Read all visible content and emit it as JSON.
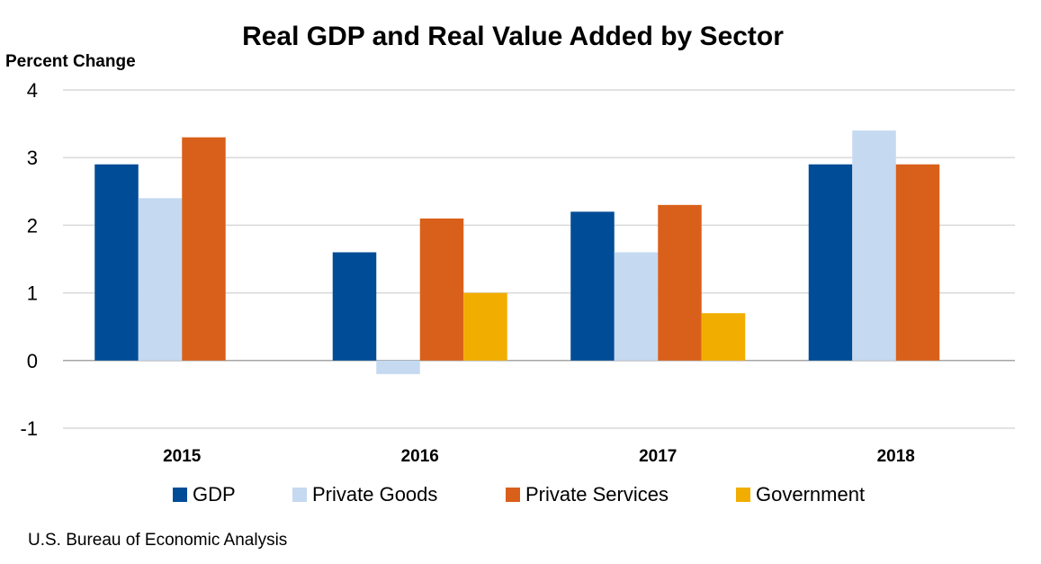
{
  "chart_data": {
    "type": "bar",
    "title": "Real GDP and Real Value Added by Sector",
    "ylabel": "Percent Change",
    "xlabel": "",
    "categories": [
      "2015",
      "2016",
      "2017",
      "2018"
    ],
    "ylim": [
      -1,
      4
    ],
    "yticks": [
      4,
      3,
      2,
      1,
      0,
      -1
    ],
    "grid": true,
    "legend_position": "bottom",
    "series": [
      {
        "name": "GDP",
        "color": "#004C97",
        "values": [
          2.9,
          1.6,
          2.2,
          2.9
        ]
      },
      {
        "name": "Private Goods",
        "color": "#C5D9F1",
        "values": [
          2.4,
          -0.2,
          1.6,
          3.4
        ]
      },
      {
        "name": "Private Services",
        "color": "#D9601A",
        "values": [
          3.3,
          2.1,
          2.3,
          2.9
        ]
      },
      {
        "name": "Government",
        "color": "#F2AE00",
        "values": [
          0,
          1.0,
          0.7,
          0
        ]
      }
    ]
  },
  "source": "U.S. Bureau of Economic Analysis"
}
